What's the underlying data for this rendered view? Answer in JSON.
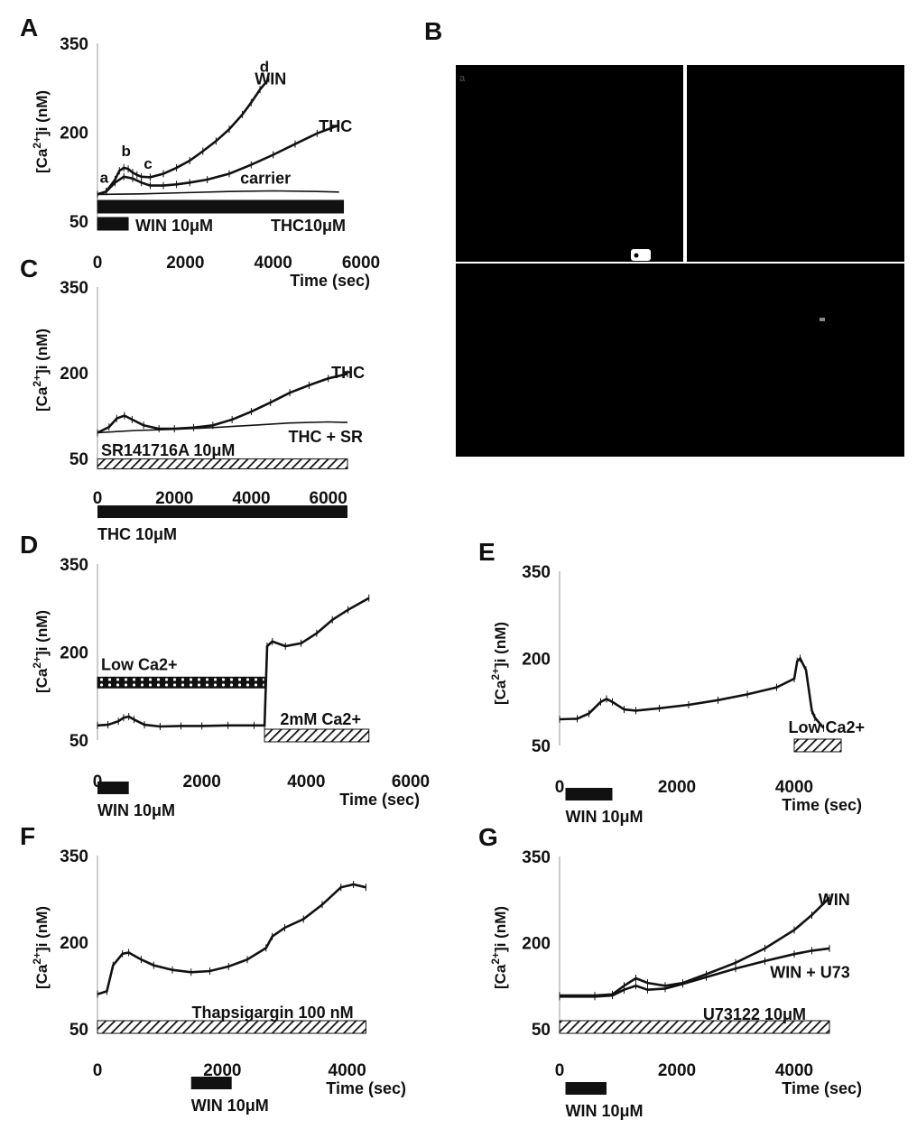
{
  "colors": {
    "ink": "#111111",
    "microscopy": "#000000",
    "cell": "#ffffff"
  },
  "panel_B": {
    "letter": "B",
    "quadrant_marks": [
      "a",
      "",
      "",
      ""
    ]
  },
  "chart_data": [
    {
      "id": "A",
      "type": "line",
      "letter": "A",
      "ylabel_main": "[Ca",
      "ylabel_sup": "2+",
      "ylabel_tail": "]i (nM)",
      "xlabel": "Time (sec)",
      "xlim": [
        0,
        6000
      ],
      "ylim": [
        50,
        350
      ],
      "xticks": [
        "0",
        "2000",
        "4000",
        "6000"
      ],
      "xtick_values": [
        0,
        2000,
        4000,
        6000
      ],
      "yticks": [
        "350",
        "200",
        "50"
      ],
      "ytick_values": [
        350,
        200,
        50
      ],
      "series": [
        {
          "name": "WIN",
          "error": true,
          "x": [
            0,
            200,
            400,
            500,
            600,
            700,
            800,
            900,
            1000,
            1200,
            1500,
            1800,
            2100,
            2400,
            2700,
            3000,
            3300,
            3500,
            3700,
            3900
          ],
          "y": [
            95,
            100,
            120,
            135,
            140,
            138,
            132,
            128,
            125,
            124,
            130,
            140,
            152,
            168,
            185,
            205,
            230,
            250,
            272,
            290
          ]
        },
        {
          "name": "THC",
          "error": true,
          "x": [
            0,
            200,
            400,
            600,
            800,
            1000,
            1200,
            1500,
            1800,
            2100,
            2500,
            3000,
            3500,
            4000,
            4500,
            5000,
            5500
          ],
          "y": [
            95,
            100,
            115,
            125,
            122,
            115,
            110,
            110,
            112,
            115,
            120,
            130,
            145,
            162,
            180,
            198,
            212
          ]
        },
        {
          "name": "carrier",
          "error": false,
          "x": [
            0,
            1000,
            2000,
            3000,
            4000,
            5000,
            5500
          ],
          "y": [
            95,
            96,
            98,
            100,
            101,
            100,
            99
          ]
        }
      ],
      "curve_labels": [
        {
          "text": "WIN",
          "x": 4300,
          "y": 290
        },
        {
          "text": "THC",
          "x": 5800,
          "y": 210
        },
        {
          "text": "carrier",
          "x": 4400,
          "y": 122
        }
      ],
      "point_labels": [
        {
          "text": "a",
          "x": 150,
          "y": 115
        },
        {
          "text": "b",
          "x": 650,
          "y": 160
        },
        {
          "text": "c",
          "x": 1150,
          "y": 138
        },
        {
          "text": "d",
          "x": 3800,
          "y": 302
        }
      ],
      "bars": [
        {
          "label": "THC10μM",
          "pattern": "solid",
          "x0": 0,
          "x1": 5600,
          "thick": 14,
          "row": 0
        },
        {
          "label": "WIN 10μM",
          "pattern": "solid",
          "x0": 0,
          "x1": 700,
          "thick": 14,
          "row": 1
        }
      ]
    },
    {
      "id": "C",
      "type": "line",
      "letter": "C",
      "ylabel_main": "[Ca",
      "ylabel_sup": "2+",
      "ylabel_tail": "]i (nM)",
      "xlabel": "",
      "xlim": [
        0,
        6500
      ],
      "ylim": [
        50,
        350
      ],
      "xticks": [
        "0",
        "2000",
        "4000",
        "6000"
      ],
      "xtick_values": [
        0,
        2000,
        4000,
        6000
      ],
      "yticks": [
        "350",
        "200",
        "50"
      ],
      "ytick_values": [
        350,
        200,
        50
      ],
      "series": [
        {
          "name": "THC",
          "error": true,
          "x": [
            0,
            300,
            500,
            700,
            900,
            1200,
            1600,
            2000,
            2500,
            3000,
            3500,
            4000,
            4500,
            5000,
            5500,
            6000,
            6500
          ],
          "y": [
            95,
            105,
            120,
            125,
            118,
            108,
            102,
            102,
            104,
            108,
            118,
            132,
            148,
            165,
            178,
            190,
            198
          ]
        },
        {
          "name": "THC + SR",
          "error": false,
          "x": [
            0,
            500,
            1000,
            2000,
            3000,
            4000,
            5000,
            6000,
            6500
          ],
          "y": [
            95,
            97,
            99,
            101,
            104,
            108,
            112,
            114,
            113
          ]
        }
      ],
      "curve_labels": [
        {
          "text": "THC",
          "x": 6950,
          "y": 200
        },
        {
          "text": "THC + SR",
          "x": 6900,
          "y": 88
        }
      ],
      "point_labels": [],
      "bars": [
        {
          "label": "SR141716A 10μM",
          "pattern": "hatch",
          "x0": 0,
          "x1": 6500,
          "thick": 11,
          "row": 0
        }
      ],
      "below_bars": [
        {
          "label": "THC 10μM",
          "pattern": "solid",
          "x0": 0,
          "x1": 6500,
          "thick": 14
        }
      ]
    },
    {
      "id": "D",
      "type": "line",
      "letter": "D",
      "ylabel_main": "[Ca",
      "ylabel_sup": "2+",
      "ylabel_tail": "]i (nM)",
      "xlabel": "Time (sec)",
      "xlim": [
        0,
        6000
      ],
      "ylim": [
        50,
        350
      ],
      "xticks": [
        "0",
        "2000",
        "4000",
        "6000"
      ],
      "xtick_values": [
        0,
        2000,
        4000,
        6000
      ],
      "yticks": [
        "350",
        "200",
        "50"
      ],
      "ytick_values": [
        350,
        200,
        50
      ],
      "series": [
        {
          "name": "",
          "error": true,
          "x": [
            0,
            200,
            400,
            500,
            600,
            700,
            900,
            1200,
            1600,
            2000,
            2500,
            3000,
            3200,
            3250,
            3350,
            3600,
            3900,
            4200,
            4500,
            4800,
            5200
          ],
          "y": [
            75,
            76,
            82,
            88,
            90,
            85,
            76,
            73,
            74,
            74,
            75,
            75,
            75,
            210,
            218,
            210,
            215,
            232,
            255,
            272,
            292
          ]
        }
      ],
      "curve_labels": [],
      "point_labels": [],
      "bars": [
        {
          "label": "2mM Ca2+",
          "pattern": "hatch",
          "x0": 3200,
          "x1": 5200,
          "thick": 14,
          "row": 0
        }
      ],
      "extra_bars": [
        {
          "label": "Low Ca2+",
          "pattern": "dots",
          "x0": 0,
          "x1": 3200,
          "thick": 12,
          "yval": 148
        }
      ],
      "below_bars": [
        {
          "label": "WIN 10μM",
          "pattern": "solid",
          "x0": 0,
          "x1": 600,
          "thick": 14
        }
      ]
    },
    {
      "id": "E",
      "type": "line",
      "letter": "E",
      "ylabel_main": "[Ca",
      "ylabel_sup": "2+",
      "ylabel_tail": "]i (nM)",
      "xlabel": "Time (sec)",
      "xlim": [
        0,
        5000
      ],
      "ylim": [
        50,
        350
      ],
      "xticks": [
        "0",
        "2000",
        "4000"
      ],
      "xtick_values": [
        0,
        2000,
        4000
      ],
      "yticks": [
        "350",
        "200",
        "50"
      ],
      "ytick_values": [
        350,
        200,
        50
      ],
      "series": [
        {
          "name": "",
          "error": true,
          "x": [
            0,
            300,
            500,
            700,
            800,
            900,
            1100,
            1300,
            1700,
            2200,
            2700,
            3200,
            3700,
            4000,
            4050,
            4100,
            4200,
            4300,
            4350,
            4500
          ],
          "y": [
            95,
            96,
            105,
            125,
            130,
            125,
            112,
            110,
            114,
            120,
            128,
            138,
            150,
            165,
            195,
            200,
            180,
            110,
            98,
            80
          ]
        }
      ],
      "curve_labels": [],
      "point_labels": [],
      "bars": [
        {
          "label": "Low Ca2+",
          "pattern": "hatch",
          "x0": 4000,
          "x1": 4800,
          "thick": 14,
          "row": 0
        }
      ],
      "below_bars": [
        {
          "label": "WIN 10μM",
          "pattern": "solid",
          "x0": 100,
          "x1": 900,
          "thick": 14
        }
      ]
    },
    {
      "id": "F",
      "type": "line",
      "letter": "F",
      "ylabel_main": "[Ca",
      "ylabel_sup": "2+",
      "ylabel_tail": "]i (nM)",
      "xlabel": "Time (sec)",
      "xlim": [
        0,
        4800
      ],
      "ylim": [
        50,
        350
      ],
      "xticks": [
        "0",
        "2000",
        "4000"
      ],
      "xtick_values": [
        0,
        2000,
        4000
      ],
      "yticks": [
        "350",
        "200",
        "50"
      ],
      "ytick_values": [
        350,
        200,
        50
      ],
      "series": [
        {
          "name": "",
          "error": true,
          "x": [
            0,
            150,
            250,
            400,
            500,
            700,
            900,
            1200,
            1500,
            1800,
            2100,
            2400,
            2700,
            2800,
            3000,
            3300,
            3600,
            3900,
            4100,
            4300
          ],
          "y": [
            110,
            115,
            160,
            180,
            182,
            170,
            160,
            152,
            148,
            150,
            158,
            170,
            190,
            210,
            225,
            240,
            265,
            295,
            300,
            295
          ]
        }
      ],
      "curve_labels": [],
      "point_labels": [],
      "bars": [
        {
          "label": "Thapsigargin 100 nM",
          "pattern": "hatch",
          "x0": 0,
          "x1": 4300,
          "thick": 14,
          "row": 0
        }
      ],
      "below_bars": [
        {
          "label": "WIN 10μM",
          "pattern": "solid",
          "x0": 1500,
          "x1": 2150,
          "thick": 14
        }
      ]
    },
    {
      "id": "G",
      "type": "line",
      "letter": "G",
      "ylabel_main": "[Ca",
      "ylabel_sup": "2+",
      "ylabel_tail": "]i (nM)",
      "xlabel": "Time (sec)",
      "xlim": [
        0,
        5000
      ],
      "ylim": [
        50,
        350
      ],
      "xticks": [
        "0",
        "2000",
        "4000"
      ],
      "xtick_values": [
        0,
        2000,
        4000
      ],
      "yticks": [
        "350",
        "200",
        "50"
      ],
      "ytick_values": [
        350,
        200,
        50
      ],
      "series": [
        {
          "name": "WIN",
          "error": true,
          "x": [
            0,
            600,
            900,
            1100,
            1300,
            1500,
            1800,
            2100,
            2500,
            3000,
            3500,
            4000,
            4300,
            4600
          ],
          "y": [
            108,
            108,
            110,
            125,
            138,
            130,
            125,
            130,
            145,
            165,
            190,
            222,
            248,
            278
          ]
        },
        {
          "name": "WIN + U73",
          "error": true,
          "x": [
            0,
            600,
            900,
            1100,
            1300,
            1500,
            1800,
            2100,
            2500,
            3000,
            3500,
            4000,
            4300,
            4600
          ],
          "y": [
            106,
            106,
            108,
            118,
            125,
            118,
            120,
            128,
            140,
            155,
            168,
            180,
            186,
            190
          ]
        }
      ],
      "curve_labels": [
        {
          "text": "WIN",
          "x": 4950,
          "y": 275
        },
        {
          "text": "WIN + U73",
          "x": 4950,
          "y": 148
        }
      ],
      "point_labels": [],
      "bars": [
        {
          "label": "U73122 10μM",
          "pattern": "hatch",
          "x0": 0,
          "x1": 4600,
          "thick": 14,
          "row": 0
        }
      ],
      "below_bars": [
        {
          "label": "WIN 10μM",
          "pattern": "solid",
          "x0": 100,
          "x1": 800,
          "thick": 14
        }
      ]
    }
  ]
}
